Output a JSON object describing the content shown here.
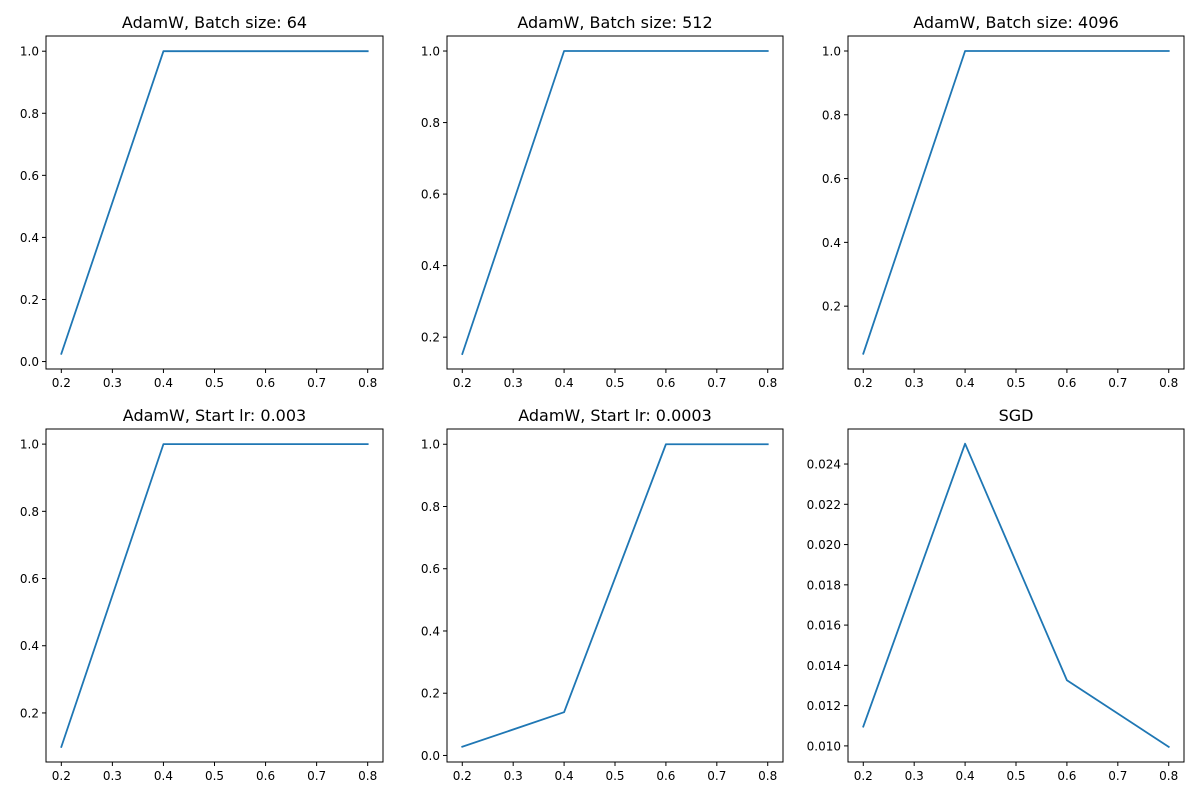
{
  "chart_data": [
    {
      "type": "line",
      "title": "AdamW, Batch size: 64",
      "xlabel": "",
      "ylabel": "",
      "x": [
        0.2,
        0.4,
        0.6,
        0.8
      ],
      "series": [
        {
          "values": [
            0.025,
            1.0,
            1.0,
            1.0
          ]
        }
      ],
      "xlim": [
        0.17,
        0.83
      ],
      "ylim": [
        -0.024,
        1.049
      ],
      "xticks": [
        "0.2",
        "0.3",
        "0.4",
        "0.5",
        "0.6",
        "0.7",
        "0.8"
      ],
      "yticks": [
        "0.0",
        "0.2",
        "0.4",
        "0.6",
        "0.8",
        "1.0"
      ],
      "grid": false,
      "color": "#1f77b4"
    },
    {
      "type": "line",
      "title": "AdamW, Batch size: 512",
      "xlabel": "",
      "ylabel": "",
      "x": [
        0.2,
        0.4,
        0.6,
        0.8
      ],
      "series": [
        {
          "values": [
            0.153,
            1.0,
            1.0,
            1.0
          ]
        }
      ],
      "xlim": [
        0.17,
        0.83
      ],
      "ylim": [
        0.111,
        1.042
      ],
      "xticks": [
        "0.2",
        "0.3",
        "0.4",
        "0.5",
        "0.6",
        "0.7",
        "0.8"
      ],
      "yticks": [
        "0.2",
        "0.4",
        "0.6",
        "0.8",
        "1.0"
      ],
      "grid": false,
      "color": "#1f77b4"
    },
    {
      "type": "line",
      "title": "AdamW, Batch size: 4096",
      "xlabel": "",
      "ylabel": "",
      "x": [
        0.2,
        0.4,
        0.6,
        0.8
      ],
      "series": [
        {
          "values": [
            0.051,
            1.0,
            1.0,
            1.0
          ]
        }
      ],
      "xlim": [
        0.17,
        0.83
      ],
      "ylim": [
        0.003,
        1.047
      ],
      "xticks": [
        "0.2",
        "0.3",
        "0.4",
        "0.5",
        "0.6",
        "0.7",
        "0.8"
      ],
      "yticks": [
        "0.2",
        "0.4",
        "0.6",
        "0.8",
        "1.0"
      ],
      "grid": false,
      "color": "#1f77b4"
    },
    {
      "type": "line",
      "title": "AdamW, Start lr: 0.003",
      "xlabel": "",
      "ylabel": "",
      "x": [
        0.2,
        0.4,
        0.6,
        0.8
      ],
      "series": [
        {
          "values": [
            0.099,
            1.0,
            1.0,
            1.0
          ]
        }
      ],
      "xlim": [
        0.17,
        0.83
      ],
      "ylim": [
        0.054,
        1.045
      ],
      "xticks": [
        "0.2",
        "0.3",
        "0.4",
        "0.5",
        "0.6",
        "0.7",
        "0.8"
      ],
      "yticks": [
        "0.2",
        "0.4",
        "0.6",
        "0.8",
        "1.0"
      ],
      "grid": false,
      "color": "#1f77b4"
    },
    {
      "type": "line",
      "title": "AdamW, Start lr: 0.0003",
      "xlabel": "",
      "ylabel": "",
      "x": [
        0.2,
        0.4,
        0.6,
        0.8
      ],
      "series": [
        {
          "values": [
            0.028,
            0.139,
            1.0,
            1.0
          ]
        }
      ],
      "xlim": [
        0.17,
        0.83
      ],
      "ylim": [
        -0.021,
        1.049
      ],
      "xticks": [
        "0.2",
        "0.3",
        "0.4",
        "0.5",
        "0.6",
        "0.7",
        "0.8"
      ],
      "yticks": [
        "0.0",
        "0.2",
        "0.4",
        "0.6",
        "0.8",
        "1.0"
      ],
      "grid": false,
      "color": "#1f77b4"
    },
    {
      "type": "line",
      "title": "SGD",
      "xlabel": "",
      "ylabel": "",
      "x": [
        0.2,
        0.4,
        0.6,
        0.8
      ],
      "series": [
        {
          "values": [
            0.01096,
            0.02501,
            0.01326,
            0.00995
          ]
        }
      ],
      "xlim": [
        0.17,
        0.83
      ],
      "ylim": [
        0.0092,
        0.02574
      ],
      "xticks": [
        "0.2",
        "0.3",
        "0.4",
        "0.5",
        "0.6",
        "0.7",
        "0.8"
      ],
      "yticks": [
        "0.010",
        "0.012",
        "0.014",
        "0.016",
        "0.018",
        "0.020",
        "0.022",
        "0.024"
      ],
      "grid": false,
      "color": "#1f77b4"
    }
  ]
}
